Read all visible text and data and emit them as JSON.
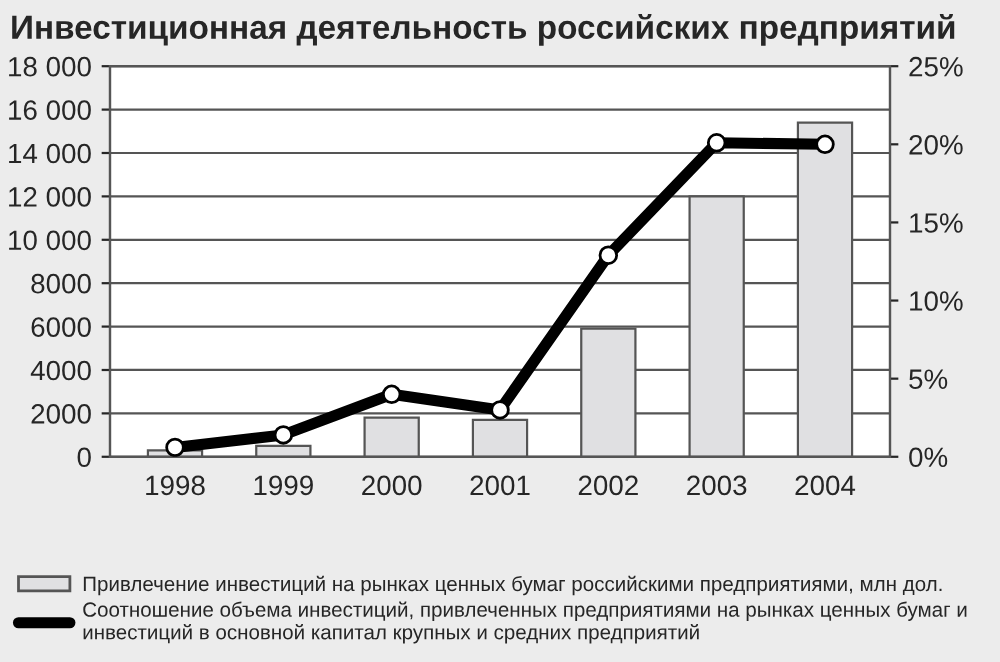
{
  "chart_data": {
    "type": "bar",
    "title": "Инвестиционная деятельность российских предприятий",
    "categories": [
      "1998",
      "1999",
      "2000",
      "2001",
      "2002",
      "2003",
      "2004"
    ],
    "series": [
      {
        "name": "Привлечение инвестиций на рынках ценных бумаг российскими предприятиями, млн дол.",
        "color": "#e0e0e2",
        "values": [
          300,
          500,
          1800,
          1700,
          5900,
          12000,
          15400
        ]
      },
      {
        "type": "line",
        "axis": "y2",
        "name": "Соотношение объема инвестиций, привлеченных предприятиями на рынках ценных бумаг и инвестиций в основной капитал крупных и средних предприятий",
        "color": "#000000",
        "values": [
          0.6,
          1.4,
          4.0,
          3.0,
          12.9,
          20.1,
          20.0
        ]
      }
    ],
    "ylim": [
      0,
      18000
    ],
    "yticks": [
      0,
      {
        "value": 2000,
        "label": "2000"
      },
      {
        "value": 4000,
        "label": "4000"
      },
      {
        "value": 6000,
        "label": "6000"
      },
      {
        "value": 8000,
        "label": "8000"
      },
      {
        "value": 10000,
        "label": "10 000"
      },
      {
        "value": 12000,
        "label": "12 000"
      },
      {
        "value": 14000,
        "label": "14 000"
      },
      {
        "value": 16000,
        "label": "16 000"
      },
      {
        "value": 18000,
        "label": "18 000"
      }
    ],
    "y2lim": [
      0,
      25
    ],
    "y2ticks": [
      {
        "value": 0,
        "label": "0%"
      },
      {
        "value": 5,
        "label": "5%"
      },
      {
        "value": 10,
        "label": "10%"
      },
      {
        "value": 15,
        "label": "15%"
      },
      {
        "value": 20,
        "label": "20%"
      },
      {
        "value": 25,
        "label": "25%"
      }
    ],
    "grid": "y",
    "legend": "bottom",
    "marker": "circle",
    "line_style": "solid"
  }
}
